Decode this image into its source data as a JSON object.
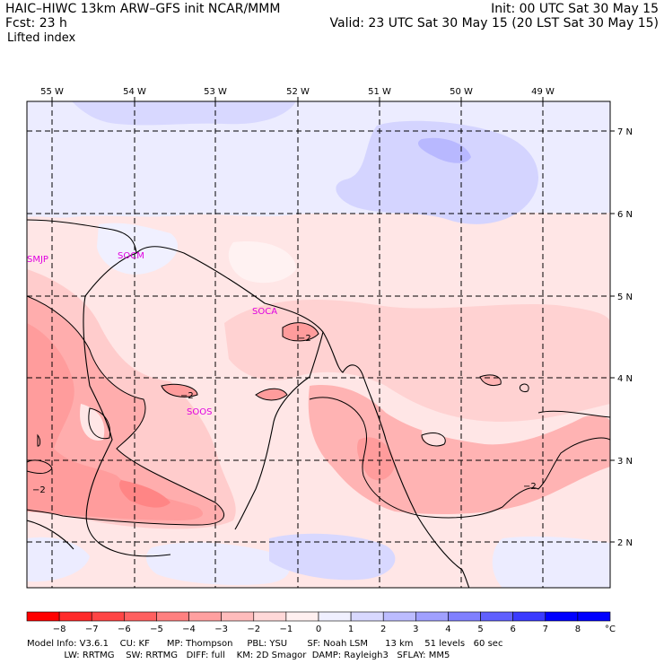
{
  "header": {
    "title": "HAIC–HIWC 13km ARW–GFS init   NCAR/MMM",
    "fcst": "Fcst:    23 h",
    "field": "Lifted index",
    "init": "Init: 00 UTC Sat 30 May 15",
    "valid": "Valid: 23 UTC Sat 30 May 15 (20 LST Sat 30 May 15)"
  },
  "map": {
    "lon_labels": [
      "55 W",
      "54 W",
      "53 W",
      "52 W",
      "51 W",
      "50 W",
      "49 W"
    ],
    "lat_labels": [
      "7 N",
      "6 N",
      "5 N",
      "4 N",
      "3 N",
      "2 N"
    ],
    "stations": [
      "SMJP",
      "SOCM",
      "SOCA",
      "SOOS"
    ],
    "contour_labels": [
      "−2",
      "−2",
      "−2",
      "−2"
    ]
  },
  "colorbar": {
    "labels": [
      "−8",
      "−7",
      "−6",
      "−5",
      "−4",
      "−3",
      "−2",
      "−1",
      "0",
      "1",
      "2",
      "3",
      "4",
      "5",
      "6",
      "7",
      "8"
    ],
    "unit": "°C",
    "colors": [
      "#ff0000",
      "#ff2a2a",
      "#ff4545",
      "#ff6060",
      "#ff8080",
      "#ffa0a0",
      "#ffbcbc",
      "#ffd8d8",
      "#fff0f0",
      "#f0f0ff",
      "#d8d8ff",
      "#bcbcff",
      "#a0a0ff",
      "#8080ff",
      "#6060ff",
      "#3a3aff",
      "#0000ff"
    ]
  },
  "footer": {
    "line1": "Model Info: V3.6.1    CU: KF      MP: Thompson     PBL: YSU       SF: Noah LSM      13 km    51 levels   60 sec",
    "line2": "             LW: RRTMG    SW: RRTMG   DIFF: full    KM: 2D Smagor  DAMP: Rayleigh3   SFLAY: MM5"
  }
}
